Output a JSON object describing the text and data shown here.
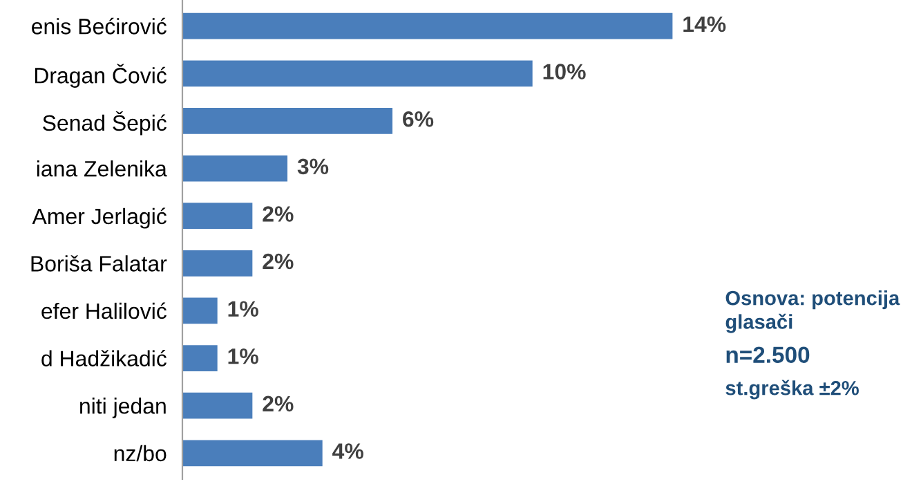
{
  "chart_data": {
    "type": "bar",
    "orientation": "horizontal",
    "categories": [
      "enis Bećirović",
      "Dragan Čović",
      "Senad Šepić",
      "iana Zelenika",
      "Amer Jerlagić",
      "Boriša Falatar",
      "efer Halilović",
      "d Hadžikadić",
      "niti jedan",
      "nz/bo"
    ],
    "values": [
      14,
      10,
      6,
      3,
      2,
      2,
      1,
      1,
      2,
      4
    ],
    "value_labels": [
      "14%",
      "10%",
      "6%",
      "3%",
      "2%",
      "2%",
      "1%",
      "1%",
      "2%",
      "4%"
    ],
    "color": "#4a7ebb",
    "grid": false,
    "legend": false,
    "tick_labels": "y",
    "annotations": [
      "Osnova: potencija\nglasači",
      "n=2.500",
      "st.greška ±2%"
    ]
  }
}
